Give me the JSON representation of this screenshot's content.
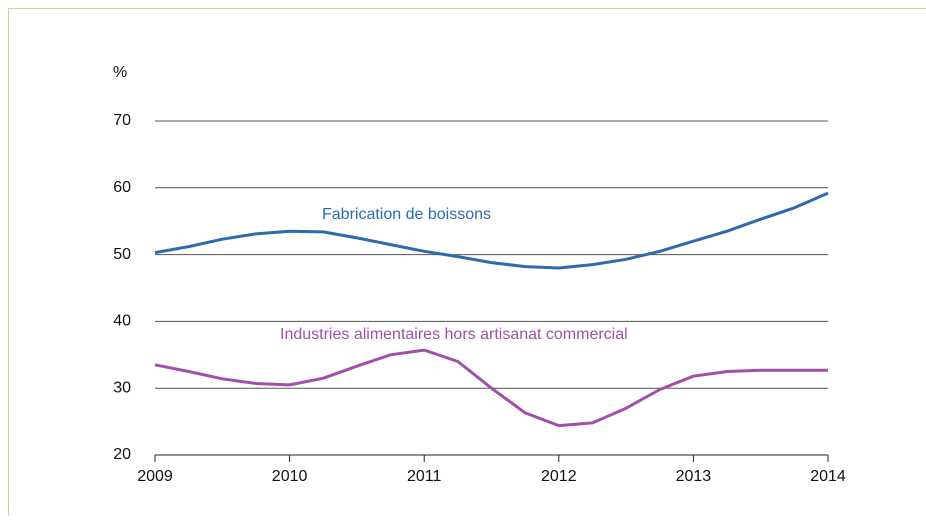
{
  "chart_data": {
    "type": "line",
    "y_label": "%",
    "x": [
      2009,
      2009.25,
      2009.5,
      2009.75,
      2010,
      2010.25,
      2010.5,
      2010.75,
      2011,
      2011.25,
      2011.5,
      2011.75,
      2012,
      2012.25,
      2012.5,
      2012.75,
      2013,
      2013.25,
      2013.5,
      2013.75,
      2014
    ],
    "series": [
      {
        "name": "Fabrication de boissons",
        "color": "#2e6ab0",
        "values": [
          50.3,
          51.2,
          52.3,
          53.1,
          53.5,
          53.4,
          52.5,
          51.5,
          50.5,
          49.7,
          48.8,
          48.2,
          48.0,
          48.5,
          49.3,
          50.5,
          52.0,
          53.5,
          55.3,
          57.0,
          59.2
        ]
      },
      {
        "name": "Industries alimentaires hors artisanat commercial",
        "color": "#a050a8",
        "values": [
          33.5,
          32.5,
          31.4,
          30.7,
          30.5,
          31.5,
          33.3,
          35.0,
          35.7,
          34.0,
          30.0,
          26.3,
          24.4,
          24.8,
          27.0,
          29.8,
          31.8,
          32.5,
          32.7,
          32.7,
          32.7
        ]
      }
    ],
    "xlim": [
      2009,
      2014
    ],
    "xticks": [
      2009,
      2010,
      2011,
      2012,
      2013,
      2014
    ],
    "ylim": [
      20,
      70
    ],
    "yticks": [
      20,
      30,
      40,
      50,
      60,
      70
    ],
    "grid": true
  }
}
